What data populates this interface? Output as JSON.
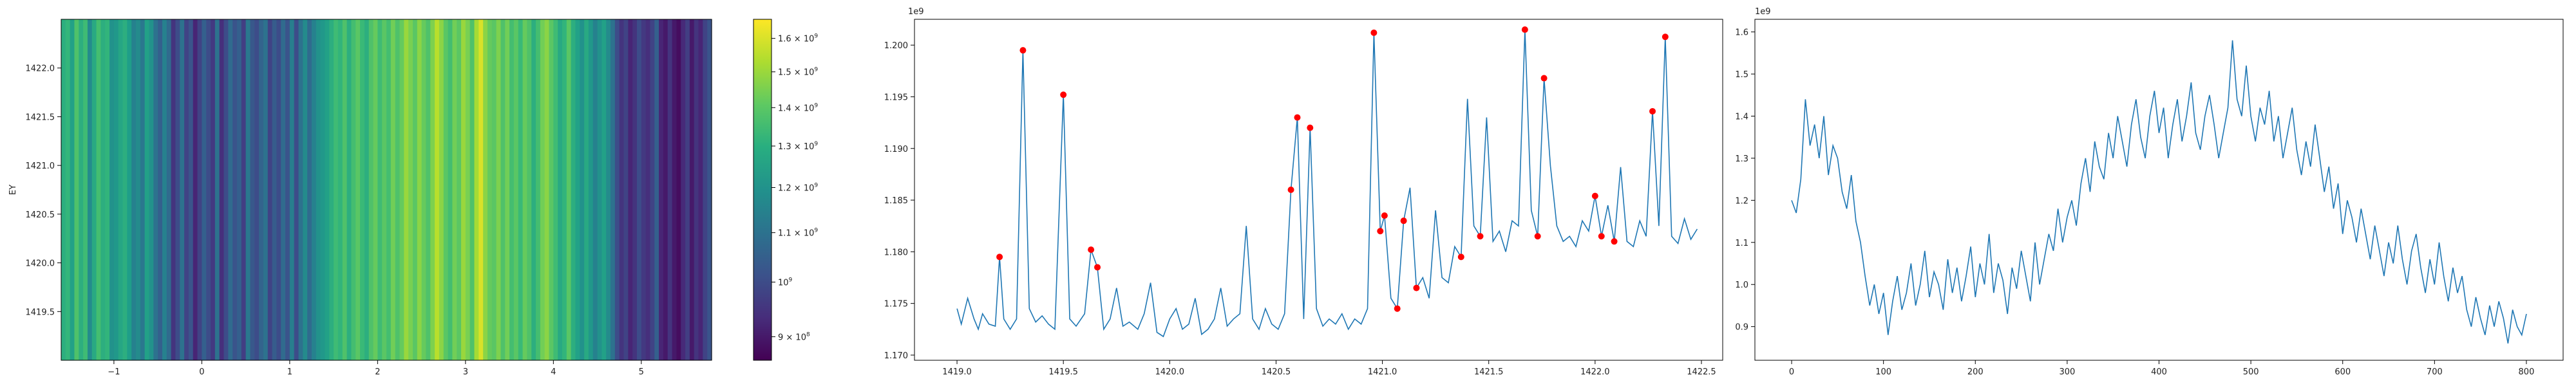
{
  "chart_data": [
    {
      "type": "heatmap",
      "ylabel": "EY",
      "x_ticks": [
        "−1",
        "0",
        "1",
        "2",
        "3",
        "4",
        "5"
      ],
      "x_tick_values": [
        -1,
        0,
        1,
        2,
        3,
        4,
        5
      ],
      "xlim": [
        -1.6,
        5.8
      ],
      "y_ticks": [
        "1419.5",
        "1420.0",
        "1420.5",
        "1421.0",
        "1421.5",
        "1422.0"
      ],
      "y_tick_values": [
        1419.5,
        1420.0,
        1420.5,
        1421.0,
        1421.5,
        1422.0
      ],
      "ylim": [
        1419.0,
        1422.5
      ],
      "column_values": [
        1.3,
        1.33,
        1.25,
        1.38,
        1.3,
        1.35,
        1.18,
        1.28,
        1.36,
        1.3,
        1.32,
        1.2,
        1.22,
        1.27,
        1.3,
        1.24,
        1.15,
        1.18,
        1.12,
        1.25,
        1.2,
        1.1,
        1.05,
        1.15,
        1.08,
        0.95,
        1.0,
        1.1,
        0.98,
        1.02,
        0.92,
        0.98,
        1.05,
        1.0,
        0.96,
        1.1,
        0.94,
        1.0,
        1.08,
        1.02,
        1.05,
        0.97,
        1.12,
        1.03,
        1.0,
        1.06,
        1.1,
        0.98,
        1.04,
        1.0,
        1.08,
        1.02,
        1.14,
        1.0,
        1.1,
        1.18,
        1.08,
        1.15,
        1.2,
        1.22,
        1.25,
        1.3,
        1.35,
        1.32,
        1.38,
        1.3,
        1.36,
        1.4,
        1.34,
        1.3,
        1.38,
        1.42,
        1.35,
        1.4,
        1.36,
        1.44,
        1.38,
        1.42,
        1.5,
        1.45,
        1.4,
        1.48,
        1.42,
        1.38,
        1.46,
        1.55,
        1.48,
        1.4,
        1.36,
        1.44,
        1.4,
        1.5,
        1.45,
        1.38,
        1.52,
        1.6,
        1.48,
        1.42,
        1.4,
        1.46,
        1.38,
        1.44,
        1.36,
        1.4,
        1.34,
        1.42,
        1.38,
        1.3,
        1.36,
        1.44,
        1.48,
        1.4,
        1.35,
        1.28,
        1.32,
        1.4,
        1.3,
        1.25,
        1.2,
        1.28,
        1.22,
        1.15,
        1.2,
        1.25,
        1.18,
        1.1,
        1.0,
        0.95,
        0.98,
        0.92,
        0.95,
        1.0,
        0.96,
        0.94,
        0.98,
        1.05,
        0.92,
        0.9,
        0.95,
        0.9,
        0.88,
        0.93,
        0.97,
        0.9,
        0.95,
        0.92,
        0.98,
        1.02
      ],
      "colorbar": {
        "min": 0.86,
        "max": 1.66,
        "ticks": [
          {
            "value": 0.9,
            "base": "9 × 10",
            "exp": "8"
          },
          {
            "value": 1.0,
            "base": "10",
            "exp": "9"
          },
          {
            "value": 1.1,
            "base": "1.1 × 10",
            "exp": "9"
          },
          {
            "value": 1.2,
            "base": "1.2 × 10",
            "exp": "9"
          },
          {
            "value": 1.3,
            "base": "1.3 × 10",
            "exp": "9"
          },
          {
            "value": 1.4,
            "base": "1.4 × 10",
            "exp": "9"
          },
          {
            "value": 1.5,
            "base": "1.5 × 10",
            "exp": "9"
          },
          {
            "value": 1.6,
            "base": "1.6 × 10",
            "exp": "9"
          }
        ],
        "colormap": "viridis",
        "scale": "log"
      }
    },
    {
      "type": "line",
      "offset_text": "1e9",
      "xlim": [
        1418.8,
        1422.6
      ],
      "ylim": [
        1.1695,
        1.2025
      ],
      "x_ticks": [
        "1419.0",
        "1419.5",
        "1420.0",
        "1420.5",
        "1421.0",
        "1421.5",
        "1422.0",
        "1422.5"
      ],
      "x_tick_values": [
        1419.0,
        1419.5,
        1420.0,
        1420.5,
        1421.0,
        1421.5,
        1422.0,
        1422.5
      ],
      "y_ticks": [
        "1.170",
        "1.175",
        "1.180",
        "1.185",
        "1.190",
        "1.195",
        "1.200"
      ],
      "y_tick_values": [
        1.17,
        1.175,
        1.18,
        1.185,
        1.19,
        1.195,
        1.2
      ],
      "x": [
        1419.0,
        1419.02,
        1419.05,
        1419.08,
        1419.1,
        1419.12,
        1419.15,
        1419.18,
        1419.2,
        1419.22,
        1419.25,
        1419.28,
        1419.31,
        1419.34,
        1419.37,
        1419.4,
        1419.43,
        1419.46,
        1419.5,
        1419.53,
        1419.56,
        1419.6,
        1419.63,
        1419.66,
        1419.69,
        1419.72,
        1419.75,
        1419.78,
        1419.81,
        1419.85,
        1419.88,
        1419.91,
        1419.94,
        1419.97,
        1420.0,
        1420.03,
        1420.06,
        1420.09,
        1420.12,
        1420.15,
        1420.18,
        1420.21,
        1420.24,
        1420.27,
        1420.3,
        1420.33,
        1420.36,
        1420.39,
        1420.42,
        1420.45,
        1420.48,
        1420.51,
        1420.54,
        1420.57,
        1420.6,
        1420.63,
        1420.66,
        1420.69,
        1420.72,
        1420.75,
        1420.78,
        1420.81,
        1420.84,
        1420.87,
        1420.9,
        1420.93,
        1420.96,
        1420.99,
        1421.01,
        1421.04,
        1421.07,
        1421.1,
        1421.13,
        1421.16,
        1421.19,
        1421.22,
        1421.25,
        1421.28,
        1421.31,
        1421.34,
        1421.37,
        1421.4,
        1421.43,
        1421.46,
        1421.49,
        1421.52,
        1421.55,
        1421.58,
        1421.61,
        1421.64,
        1421.67,
        1421.7,
        1421.73,
        1421.76,
        1421.79,
        1421.82,
        1421.85,
        1421.88,
        1421.91,
        1421.94,
        1421.97,
        1422.0,
        1422.03,
        1422.06,
        1422.09,
        1422.12,
        1422.15,
        1422.18,
        1422.21,
        1422.24,
        1422.27,
        1422.3,
        1422.33,
        1422.36,
        1422.39,
        1422.42,
        1422.45,
        1422.48
      ],
      "y": [
        1.1745,
        1.173,
        1.1755,
        1.1735,
        1.1725,
        1.174,
        1.173,
        1.1728,
        1.1795,
        1.1735,
        1.1725,
        1.1735,
        1.1995,
        1.1745,
        1.1732,
        1.1738,
        1.173,
        1.1725,
        1.1952,
        1.1735,
        1.1728,
        1.174,
        1.1802,
        1.1785,
        1.1725,
        1.1735,
        1.1765,
        1.1728,
        1.1732,
        1.1725,
        1.174,
        1.177,
        1.1722,
        1.1718,
        1.1735,
        1.1745,
        1.1725,
        1.173,
        1.1755,
        1.172,
        1.1725,
        1.1735,
        1.1765,
        1.1728,
        1.1735,
        1.174,
        1.1825,
        1.1735,
        1.1725,
        1.1745,
        1.173,
        1.1725,
        1.174,
        1.186,
        1.193,
        1.1735,
        1.192,
        1.1745,
        1.1728,
        1.1735,
        1.173,
        1.174,
        1.1725,
        1.1735,
        1.173,
        1.1745,
        1.2012,
        1.182,
        1.1835,
        1.1755,
        1.1745,
        1.183,
        1.1862,
        1.1765,
        1.1775,
        1.1755,
        1.184,
        1.1775,
        1.177,
        1.1805,
        1.1795,
        1.1948,
        1.1825,
        1.1815,
        1.193,
        1.181,
        1.182,
        1.18,
        1.183,
        1.1825,
        1.2015,
        1.184,
        1.1815,
        1.1968,
        1.1883,
        1.1825,
        1.181,
        1.1815,
        1.1805,
        1.183,
        1.182,
        1.1854,
        1.1815,
        1.1845,
        1.181,
        1.1882,
        1.181,
        1.1805,
        1.183,
        1.1815,
        1.1936,
        1.1825,
        1.2008,
        1.1815,
        1.1808,
        1.1832,
        1.1812,
        1.1822
      ],
      "marker_indices": [
        8,
        12,
        18,
        22,
        23,
        53,
        54,
        56,
        66,
        67,
        68,
        70,
        71,
        73,
        80,
        83,
        90,
        92,
        93,
        101,
        102,
        104,
        110,
        112
      ],
      "line_color": "#1f77b4",
      "marker_color": "#ff0000"
    },
    {
      "type": "line",
      "offset_text": "1e9",
      "xlim": [
        -40,
        840
      ],
      "ylim": [
        0.82,
        1.63
      ],
      "x_ticks": [
        "0",
        "100",
        "200",
        "300",
        "400",
        "500",
        "600",
        "700",
        "800"
      ],
      "x_tick_values": [
        0,
        100,
        200,
        300,
        400,
        500,
        600,
        700,
        800
      ],
      "y_ticks": [
        "0.9",
        "1.0",
        "1.1",
        "1.2",
        "1.3",
        "1.4",
        "1.5",
        "1.6"
      ],
      "y_tick_values": [
        0.9,
        1.0,
        1.1,
        1.2,
        1.3,
        1.4,
        1.5,
        1.6
      ],
      "x": [
        0,
        5,
        10,
        15,
        20,
        25,
        30,
        35,
        40,
        45,
        50,
        55,
        60,
        65,
        70,
        75,
        80,
        85,
        90,
        95,
        100,
        105,
        110,
        115,
        120,
        125,
        130,
        135,
        140,
        145,
        150,
        155,
        160,
        165,
        170,
        175,
        180,
        185,
        190,
        195,
        200,
        205,
        210,
        215,
        220,
        225,
        230,
        235,
        240,
        245,
        250,
        255,
        260,
        265,
        270,
        275,
        280,
        285,
        290,
        295,
        300,
        305,
        310,
        315,
        320,
        325,
        330,
        335,
        340,
        345,
        350,
        355,
        360,
        365,
        370,
        375,
        380,
        385,
        390,
        395,
        400,
        405,
        410,
        415,
        420,
        425,
        430,
        435,
        440,
        445,
        450,
        455,
        460,
        465,
        470,
        475,
        480,
        485,
        490,
        495,
        500,
        505,
        510,
        515,
        520,
        525,
        530,
        535,
        540,
        545,
        550,
        555,
        560,
        565,
        570,
        575,
        580,
        585,
        590,
        595,
        600,
        605,
        610,
        615,
        620,
        625,
        630,
        635,
        640,
        645,
        650,
        655,
        660,
        665,
        670,
        675,
        680,
        685,
        690,
        695,
        700,
        705,
        710,
        715,
        720,
        725,
        730,
        735,
        740,
        745,
        750,
        755,
        760,
        765,
        770,
        775,
        780,
        785,
        790,
        795,
        800
      ],
      "y": [
        1.2,
        1.17,
        1.25,
        1.44,
        1.33,
        1.38,
        1.3,
        1.4,
        1.26,
        1.33,
        1.3,
        1.22,
        1.18,
        1.26,
        1.15,
        1.1,
        1.02,
        0.95,
        1.0,
        0.93,
        0.98,
        0.88,
        0.96,
        1.02,
        0.94,
        0.98,
        1.05,
        0.95,
        1.0,
        1.08,
        0.97,
        1.03,
        1.0,
        0.94,
        1.06,
        0.98,
        1.04,
        0.96,
        1.02,
        1.09,
        0.97,
        1.05,
        1.0,
        1.12,
        0.98,
        1.05,
        1.01,
        0.93,
        1.04,
        0.99,
        1.08,
        1.02,
        0.96,
        1.1,
        1.0,
        1.06,
        1.12,
        1.08,
        1.18,
        1.1,
        1.16,
        1.2,
        1.14,
        1.24,
        1.3,
        1.22,
        1.34,
        1.28,
        1.25,
        1.36,
        1.3,
        1.4,
        1.34,
        1.28,
        1.38,
        1.44,
        1.35,
        1.3,
        1.4,
        1.46,
        1.36,
        1.42,
        1.3,
        1.38,
        1.44,
        1.34,
        1.4,
        1.48,
        1.36,
        1.32,
        1.4,
        1.45,
        1.38,
        1.3,
        1.36,
        1.42,
        1.58,
        1.44,
        1.4,
        1.52,
        1.4,
        1.34,
        1.42,
        1.38,
        1.46,
        1.34,
        1.4,
        1.3,
        1.36,
        1.42,
        1.32,
        1.26,
        1.34,
        1.28,
        1.38,
        1.3,
        1.22,
        1.28,
        1.18,
        1.24,
        1.12,
        1.2,
        1.16,
        1.1,
        1.18,
        1.12,
        1.06,
        1.14,
        1.08,
        1.02,
        1.1,
        1.05,
        1.14,
        1.06,
        1.0,
        1.08,
        1.12,
        1.04,
        0.98,
        1.06,
        1.0,
        1.1,
        1.02,
        0.96,
        1.04,
        0.98,
        1.02,
        0.94,
        0.9,
        0.97,
        0.92,
        0.88,
        0.95,
        0.9,
        0.96,
        0.92,
        0.86,
        0.94,
        0.9,
        0.88,
        0.93
      ],
      "line_color": "#1f77b4"
    }
  ]
}
